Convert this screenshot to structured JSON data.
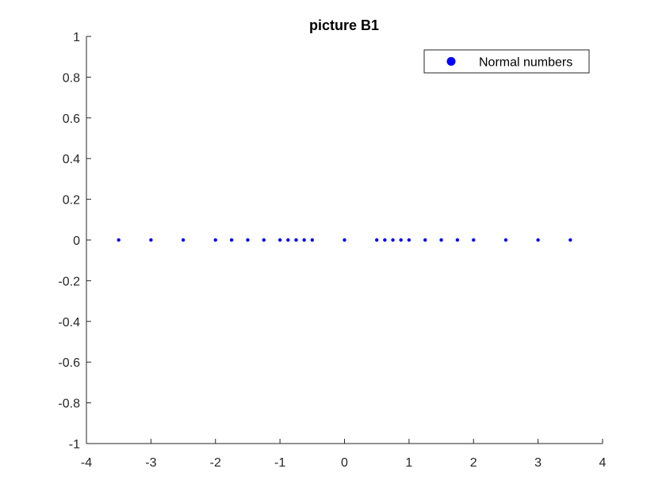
{
  "chart_data": {
    "type": "scatter",
    "title": "picture B1",
    "xlabel": "",
    "ylabel": "",
    "xlim": [
      -4,
      4
    ],
    "ylim": [
      -1,
      1
    ],
    "xticks": [
      "-4",
      "-3",
      "-2",
      "-1",
      "0",
      "1",
      "2",
      "3",
      "4"
    ],
    "yticks": [
      "-1",
      "-0.8",
      "-0.6",
      "-0.4",
      "-0.2",
      "0",
      "0.2",
      "0.4",
      "0.6",
      "0.8",
      "1"
    ],
    "grid": false,
    "legend_position": "top-right",
    "series": [
      {
        "name": "Normal numbers",
        "color": "#0000ff",
        "marker": "dot",
        "x": [
          -3.5,
          -3,
          -2.5,
          -2,
          -1.75,
          -1.5,
          -1.25,
          -1,
          -0.875,
          -0.75,
          -0.625,
          -0.5,
          0,
          0.5,
          0.625,
          0.75,
          0.875,
          1,
          1.25,
          1.5,
          1.75,
          2,
          2.5,
          3,
          3.5
        ],
        "y": [
          0,
          0,
          0,
          0,
          0,
          0,
          0,
          0,
          0,
          0,
          0,
          0,
          0,
          0,
          0,
          0,
          0,
          0,
          0,
          0,
          0,
          0,
          0,
          0,
          0
        ]
      }
    ]
  }
}
